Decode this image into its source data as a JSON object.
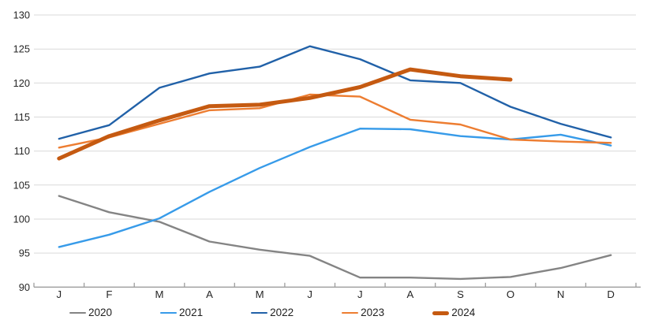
{
  "chart_data": {
    "type": "line",
    "title": "",
    "xlabel": "",
    "ylabel": "",
    "categories": [
      "J",
      "F",
      "M",
      "A",
      "M",
      "J",
      "J",
      "A",
      "S",
      "O",
      "N",
      "D"
    ],
    "y_ticks": [
      130,
      125,
      120,
      115,
      110,
      105,
      100,
      95,
      90
    ],
    "ylim": [
      90,
      130
    ],
    "grid": "horizontal",
    "legend_position": "bottom",
    "grid_color": "#D9D9D9",
    "axis_color": "#9E9E9E",
    "label_color": "#262626",
    "series": [
      {
        "name": "2020",
        "color": "#848484",
        "width": 2.4,
        "values": [
          103.4,
          101.0,
          99.6,
          96.7,
          95.5,
          94.6,
          91.4,
          91.4,
          91.2,
          91.5,
          92.8,
          94.7
        ]
      },
      {
        "name": "2021",
        "color": "#379BE9",
        "width": 2.4,
        "values": [
          95.9,
          97.7,
          100.1,
          104.0,
          107.5,
          110.6,
          113.3,
          113.2,
          112.2,
          111.7,
          112.4,
          110.8
        ]
      },
      {
        "name": "2022",
        "color": "#2161A8",
        "width": 2.4,
        "values": [
          111.8,
          113.8,
          119.3,
          121.4,
          122.4,
          125.4,
          123.5,
          120.4,
          120.0,
          116.5,
          114.0,
          112.0
        ]
      },
      {
        "name": "2023",
        "color": "#ED7D31",
        "width": 2.4,
        "values": [
          110.5,
          112.0,
          114.0,
          116.0,
          116.3,
          118.3,
          118.0,
          114.6,
          113.9,
          111.7,
          111.4,
          111.2
        ]
      },
      {
        "name": "2024",
        "color": "#C55A11",
        "width": 5,
        "values": [
          108.9,
          112.2,
          114.5,
          116.6,
          116.8,
          117.8,
          119.4,
          122.0,
          121.0,
          120.5,
          null,
          null
        ]
      }
    ]
  }
}
